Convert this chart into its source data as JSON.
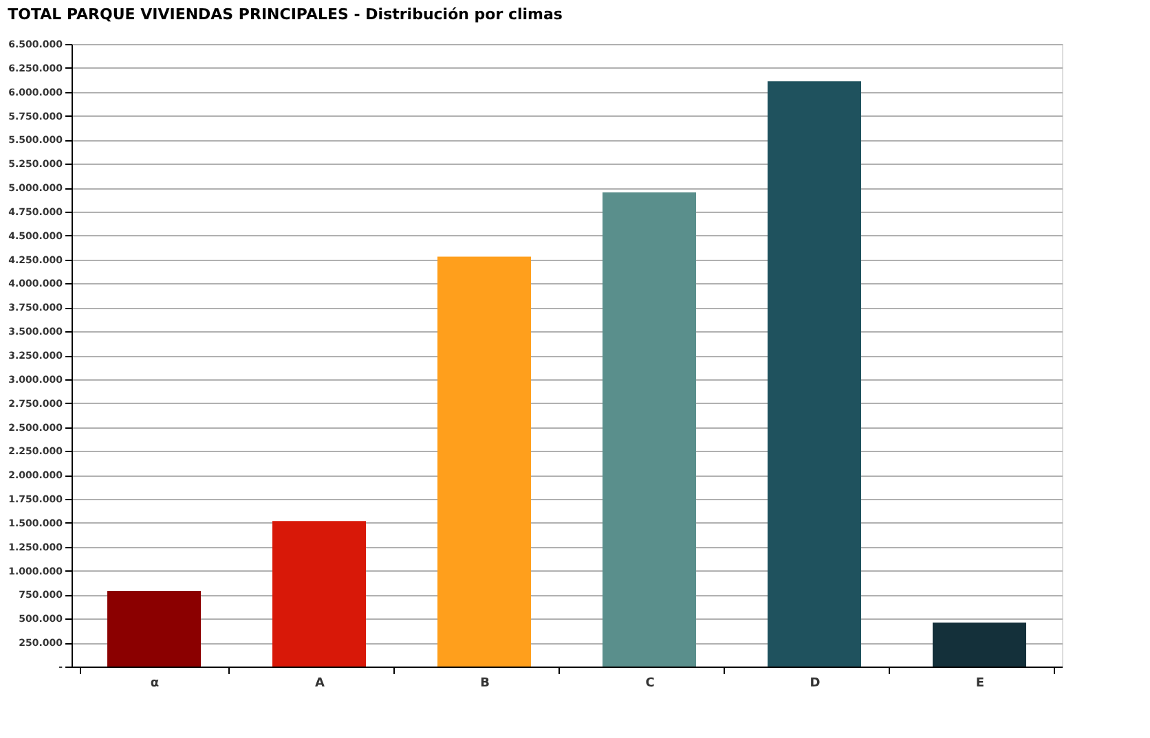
{
  "chart_data": {
    "type": "bar",
    "title": "TOTAL PARQUE VIVIENDAS PRINCIPALES        -      Distribución por climas",
    "categories": [
      "α",
      "A",
      "B",
      "C",
      "D",
      "E"
    ],
    "values": [
      790000,
      1520000,
      4280000,
      4950000,
      6110000,
      460000
    ],
    "colors": [
      "#8b0000",
      "#d81808",
      "#ff9f1c",
      "#5a8f8c",
      "#1f525e",
      "#14303a"
    ],
    "ylim": [
      0,
      6500000
    ],
    "yticks": [
      {
        "value": 0,
        "label": "-"
      },
      {
        "value": 250000,
        "label": "250.000"
      },
      {
        "value": 500000,
        "label": "500.000"
      },
      {
        "value": 750000,
        "label": "750.000"
      },
      {
        "value": 1000000,
        "label": "1.000.000"
      },
      {
        "value": 1250000,
        "label": "1.250.000"
      },
      {
        "value": 1500000,
        "label": "1.500.000"
      },
      {
        "value": 1750000,
        "label": "1.750.000"
      },
      {
        "value": 2000000,
        "label": "2.000.000"
      },
      {
        "value": 2250000,
        "label": "2.250.000"
      },
      {
        "value": 2500000,
        "label": "2.500.000"
      },
      {
        "value": 2750000,
        "label": "2.750.000"
      },
      {
        "value": 3000000,
        "label": "3.000.000"
      },
      {
        "value": 3250000,
        "label": "3.250.000"
      },
      {
        "value": 3500000,
        "label": "3.500.000"
      },
      {
        "value": 3750000,
        "label": "3.750.000"
      },
      {
        "value": 4000000,
        "label": "4.000.000"
      },
      {
        "value": 4250000,
        "label": "4.250.000"
      },
      {
        "value": 4500000,
        "label": "4.500.000"
      },
      {
        "value": 4750000,
        "label": "4.750.000"
      },
      {
        "value": 5000000,
        "label": "5.000.000"
      },
      {
        "value": 5250000,
        "label": "5.250.000"
      },
      {
        "value": 5500000,
        "label": "5.500.000"
      },
      {
        "value": 5750000,
        "label": "5.750.000"
      },
      {
        "value": 6000000,
        "label": "6.000.000"
      },
      {
        "value": 6250000,
        "label": "6.250.000"
      },
      {
        "value": 6500000,
        "label": "6.500.000"
      }
    ],
    "grid": "y",
    "legend": false
  }
}
